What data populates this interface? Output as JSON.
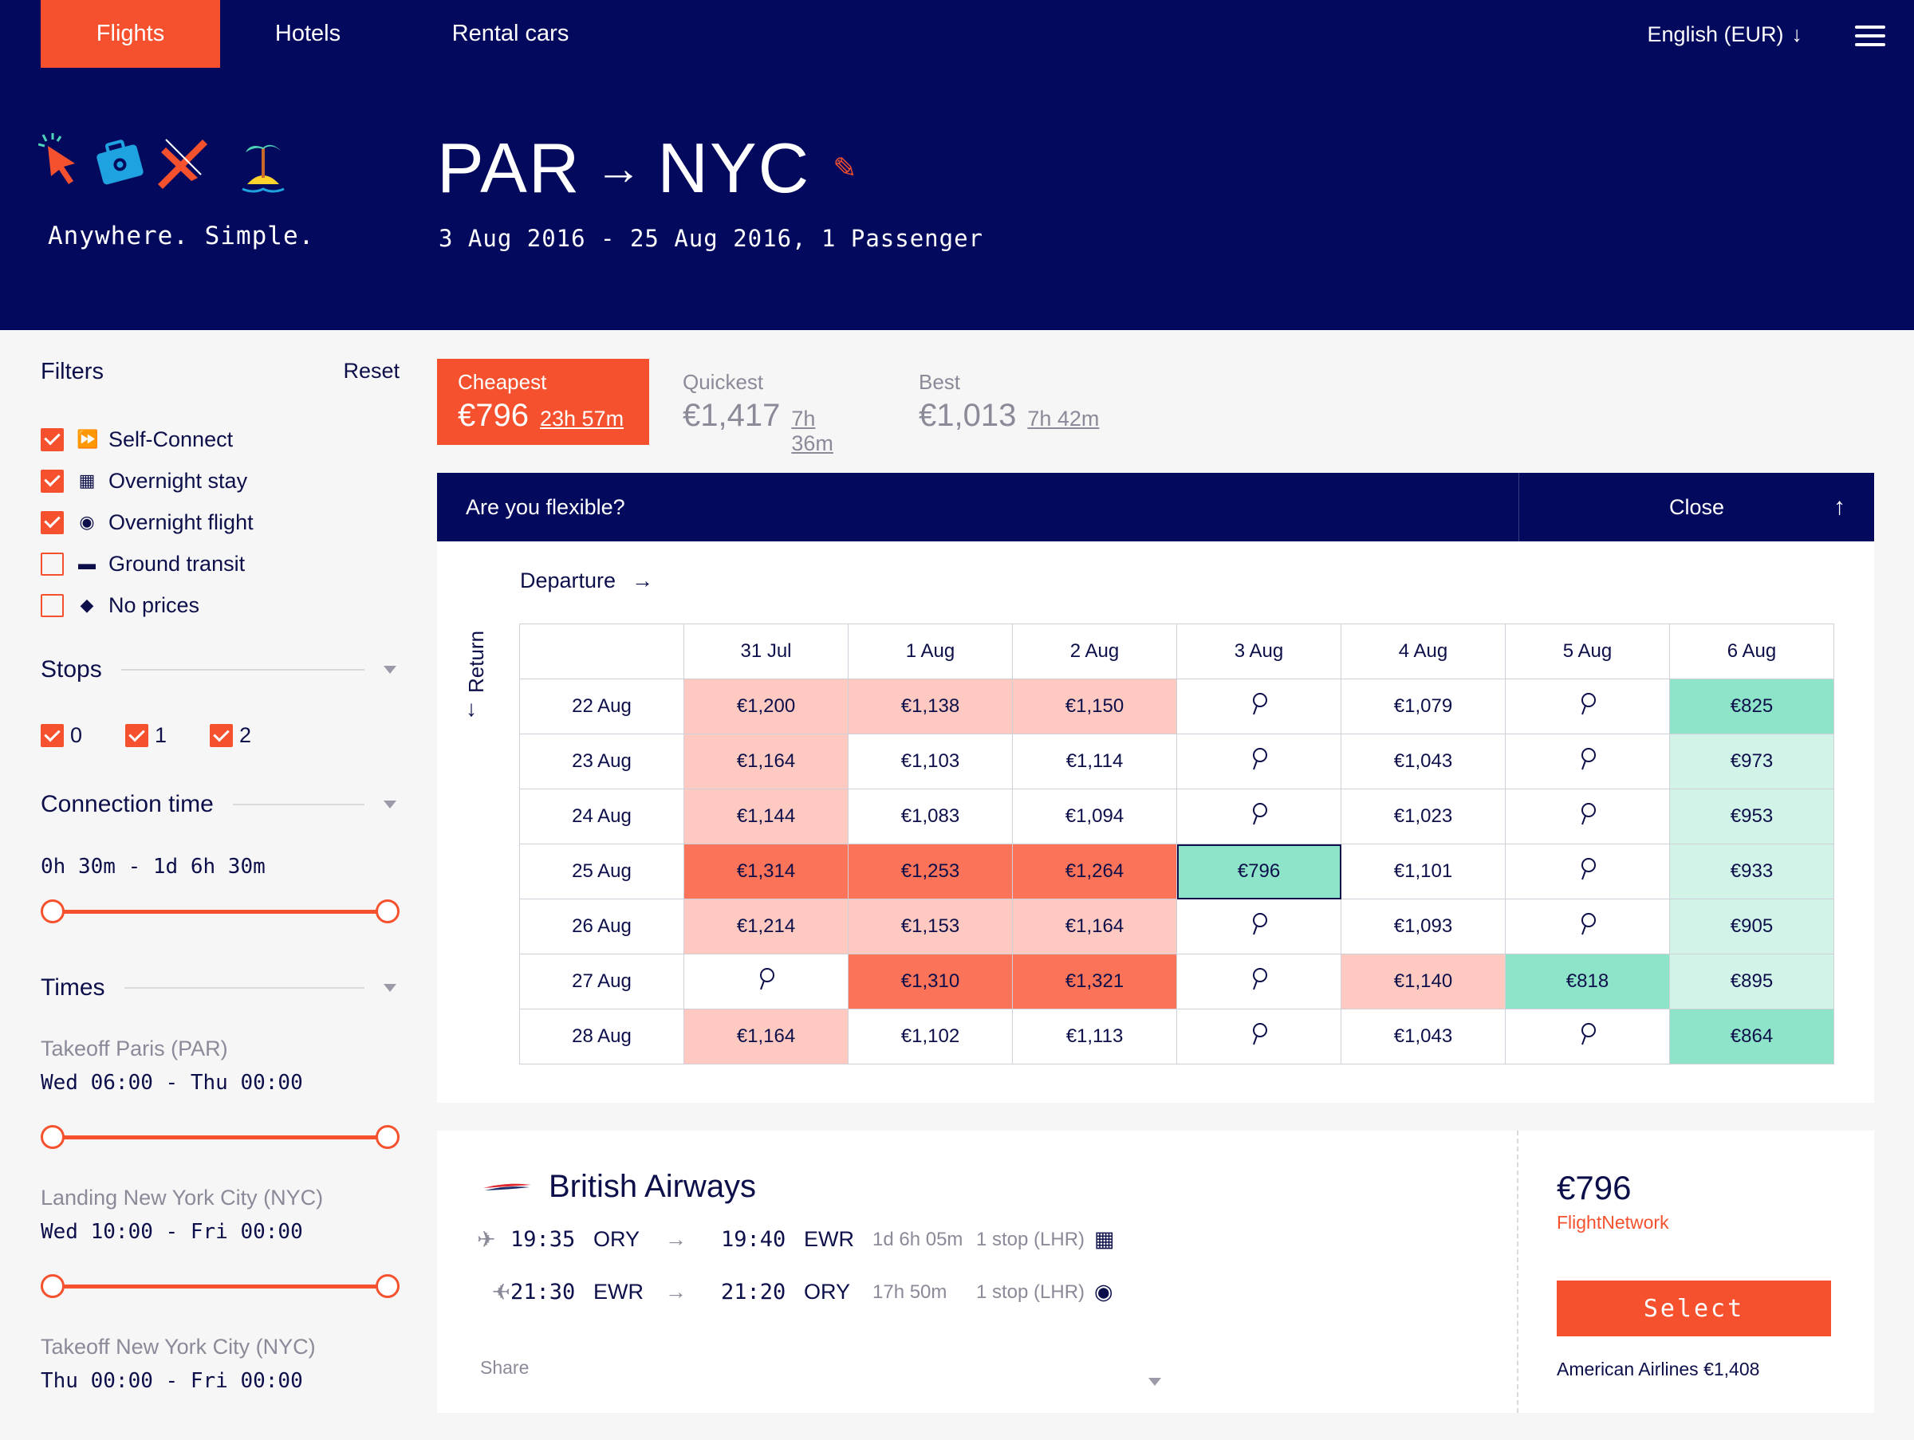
{
  "nav": {
    "tabs": [
      {
        "label": "Flights",
        "active": true
      },
      {
        "label": "Hotels",
        "active": false
      },
      {
        "label": "Rental cars",
        "active": false
      }
    ],
    "language": "English (EUR)",
    "language_icon": "arrow-down"
  },
  "brand": {
    "tagline": "Anywhere. Simple."
  },
  "search": {
    "origin": "PAR",
    "destination": "NYC",
    "summary": "3 Aug 2016 - 25 Aug 2016, 1 Passenger"
  },
  "filters": {
    "title": "Filters",
    "reset": "Reset",
    "items": [
      {
        "label": "Self-Connect",
        "checked": true,
        "icon": "double-chevron-icon"
      },
      {
        "label": "Overnight stay",
        "checked": true,
        "icon": "building-icon"
      },
      {
        "label": "Overnight flight",
        "checked": true,
        "icon": "eye-icon"
      },
      {
        "label": "Ground transit",
        "checked": false,
        "icon": "bus-icon"
      },
      {
        "label": "No prices",
        "checked": false,
        "icon": "tag-icon"
      }
    ],
    "stops": {
      "title": "Stops",
      "options": [
        {
          "label": "0",
          "checked": true
        },
        {
          "label": "1",
          "checked": true
        },
        {
          "label": "2",
          "checked": true
        }
      ]
    },
    "connection": {
      "title": "Connection time",
      "range": "0h 30m - 1d 6h 30m"
    },
    "times": {
      "title": "Times",
      "groups": [
        {
          "label": "Takeoff Paris (PAR)",
          "value": "Wed 06:00 - Thu 00:00"
        },
        {
          "label": "Landing New York City (NYC)",
          "value": "Wed 10:00 - Fri 00:00"
        },
        {
          "label": "Takeoff New York City (NYC)",
          "value": "Thu 00:00 - Fri 00:00"
        }
      ]
    }
  },
  "sort": [
    {
      "label": "Cheapest",
      "price": "€796",
      "duration": "23h 57m",
      "active": true
    },
    {
      "label": "Quickest",
      "price": "€1,417",
      "duration": "7h 36m",
      "active": false
    },
    {
      "label": "Best",
      "price": "€1,013",
      "duration": "7h 42m",
      "active": false
    }
  ],
  "flexible": {
    "question": "Are you flexible?",
    "close": "Close",
    "departure_label": "Departure",
    "return_label": "Return",
    "columns": [
      "31 Jul",
      "1 Aug",
      "2 Aug",
      "3 Aug",
      "4 Aug",
      "5 Aug",
      "6 Aug"
    ],
    "rows": [
      {
        "date": "22 Aug",
        "cells": [
          {
            "v": "€1,200",
            "c": "#fdc9c0"
          },
          {
            "v": "€1,138",
            "c": "#fdc9c0"
          },
          {
            "v": "€1,150",
            "c": "#fdc9c0"
          },
          {
            "v": "",
            "c": "#ffffff"
          },
          {
            "v": "€1,079",
            "c": "#ffffff"
          },
          {
            "v": "",
            "c": "#ffffff"
          },
          {
            "v": "€825",
            "c": "#8ee4c8"
          }
        ]
      },
      {
        "date": "23 Aug",
        "cells": [
          {
            "v": "€1,164",
            "c": "#fdc9c0"
          },
          {
            "v": "€1,103",
            "c": "#ffffff"
          },
          {
            "v": "€1,114",
            "c": "#ffffff"
          },
          {
            "v": "",
            "c": "#ffffff"
          },
          {
            "v": "€1,043",
            "c": "#ffffff"
          },
          {
            "v": "",
            "c": "#ffffff"
          },
          {
            "v": "€973",
            "c": "#d2f3e8"
          }
        ]
      },
      {
        "date": "24 Aug",
        "cells": [
          {
            "v": "€1,144",
            "c": "#fdc9c0"
          },
          {
            "v": "€1,083",
            "c": "#ffffff"
          },
          {
            "v": "€1,094",
            "c": "#ffffff"
          },
          {
            "v": "",
            "c": "#ffffff"
          },
          {
            "v": "€1,023",
            "c": "#ffffff"
          },
          {
            "v": "",
            "c": "#ffffff"
          },
          {
            "v": "€953",
            "c": "#d2f3e8"
          }
        ]
      },
      {
        "date": "25 Aug",
        "cells": [
          {
            "v": "€1,314",
            "c": "#fb7358"
          },
          {
            "v": "€1,253",
            "c": "#fb7358"
          },
          {
            "v": "€1,264",
            "c": "#fb7358"
          },
          {
            "v": "€796",
            "c": "#8ee4c8",
            "sel": true
          },
          {
            "v": "€1,101",
            "c": "#ffffff"
          },
          {
            "v": "",
            "c": "#ffffff"
          },
          {
            "v": "€933",
            "c": "#d2f3e8"
          }
        ]
      },
      {
        "date": "26 Aug",
        "cells": [
          {
            "v": "€1,214",
            "c": "#fdc9c0"
          },
          {
            "v": "€1,153",
            "c": "#fdc9c0"
          },
          {
            "v": "€1,164",
            "c": "#fdc9c0"
          },
          {
            "v": "",
            "c": "#ffffff"
          },
          {
            "v": "€1,093",
            "c": "#ffffff"
          },
          {
            "v": "",
            "c": "#ffffff"
          },
          {
            "v": "€905",
            "c": "#d2f3e8"
          }
        ]
      },
      {
        "date": "27 Aug",
        "cells": [
          {
            "v": "",
            "c": "#ffffff"
          },
          {
            "v": "€1,310",
            "c": "#fb7358"
          },
          {
            "v": "€1,321",
            "c": "#fb7358"
          },
          {
            "v": "",
            "c": "#ffffff"
          },
          {
            "v": "€1,140",
            "c": "#fdc9c0"
          },
          {
            "v": "€818",
            "c": "#8ee4c8"
          },
          {
            "v": "€895",
            "c": "#d2f3e8"
          }
        ]
      },
      {
        "date": "28 Aug",
        "cells": [
          {
            "v": "€1,164",
            "c": "#fdc9c0"
          },
          {
            "v": "€1,102",
            "c": "#ffffff"
          },
          {
            "v": "€1,113",
            "c": "#ffffff"
          },
          {
            "v": "",
            "c": "#ffffff"
          },
          {
            "v": "€1,043",
            "c": "#ffffff"
          },
          {
            "v": "",
            "c": "#ffffff"
          },
          {
            "v": "€864",
            "c": "#8ee4c8"
          }
        ]
      }
    ]
  },
  "result": {
    "airline": "British Airways",
    "legs": [
      {
        "dep_time": "19:35",
        "dep_airport": "ORY",
        "arr_time": "19:40",
        "arr_airport": "EWR",
        "duration": "1d 6h 05m",
        "stops": "1 stop (LHR)",
        "icon": "building-icon"
      },
      {
        "dep_time": "21:30",
        "dep_airport": "EWR",
        "arr_time": "21:20",
        "arr_airport": "ORY",
        "duration": "17h 50m",
        "stops": "1 stop (LHR)",
        "icon": "eye-icon"
      }
    ],
    "share": "Share",
    "price": "€796",
    "agent": "FlightNetwork",
    "select": "Select",
    "alternative": "American Airlines €1,408"
  },
  "colors": {
    "navy": "#030a5e",
    "accent": "#f5512e",
    "green": "#8ee4c8"
  }
}
